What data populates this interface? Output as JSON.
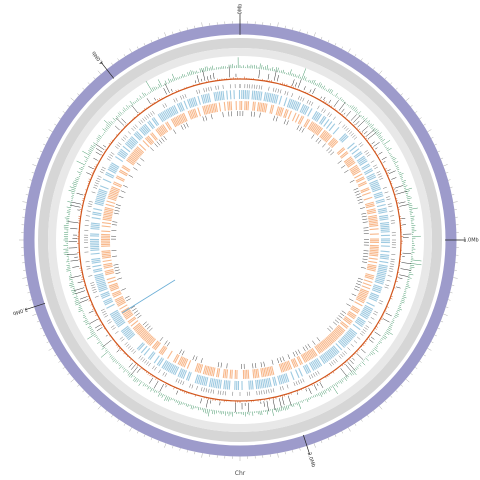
{
  "chromosome_label": "Chr",
  "position_labels": [
    {
      "text": "0Mb",
      "angle_deg": 0
    },
    {
      "text": "1.0Mb",
      "angle_deg": 90
    },
    {
      "text": "2.0Mb",
      "angle_deg": 162
    },
    {
      "text": "3.0Mb",
      "angle_deg": 252
    },
    {
      "text": "4.0Mb",
      "angle_deg": 322
    }
  ],
  "colors": {
    "outer_ring": "#9d9bcb",
    "gc_ring_bg": "#d6d6d6",
    "gc_ring_inner": "#e8e8e8",
    "skew_track": "#2e8b57",
    "depth_track": "#d2571e",
    "snp_track": "#333333",
    "cds_forward": "#9ecae1",
    "cds_reverse": "#f8b88b",
    "rna_track": "#333333",
    "highlight_line": "#6baed6"
  },
  "chart_data": {
    "type": "circular-genome",
    "tracks": [
      "ideogram",
      "gc-content",
      "gc-skew",
      "depth",
      "variants",
      "cds-forward",
      "cds-reverse",
      "rna"
    ],
    "axis_ticks_mb": [
      0,
      1,
      2,
      3,
      4
    ]
  }
}
